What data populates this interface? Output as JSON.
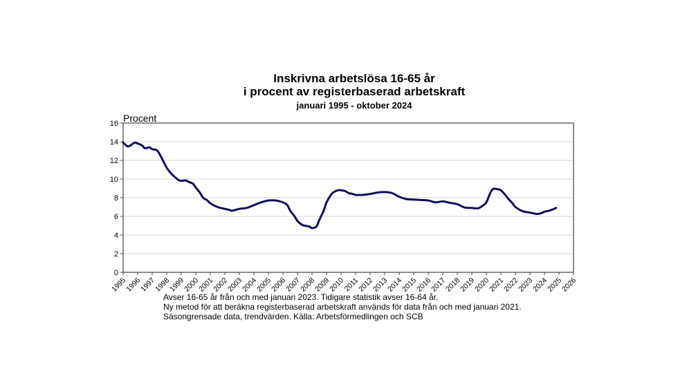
{
  "chart_data": {
    "type": "line",
    "title": "Inskrivna arbetslösa 16-65 år",
    "subtitle": "i procent av registerbaserad arbetskraft",
    "period": "januari 1995 - oktober 2024",
    "xlabel": "",
    "ylabel": "Procent",
    "ylim": [
      0,
      16
    ],
    "yticks": [
      0,
      2,
      4,
      6,
      8,
      10,
      12,
      14,
      16
    ],
    "xticks": [
      "1995",
      "1996",
      "1997",
      "1998",
      "1999",
      "2000",
      "2001",
      "2002",
      "2003",
      "2004",
      "2005",
      "2006",
      "2007",
      "2008",
      "2009",
      "2010",
      "2011",
      "2012",
      "2013",
      "2014",
      "2015",
      "2016",
      "2017",
      "2018",
      "2019",
      "2020",
      "2021",
      "2022",
      "2023",
      "2024",
      "2025",
      "2026"
    ],
    "xlim": [
      1995,
      2026
    ],
    "grid": true,
    "legend": "none",
    "series": [
      {
        "name": "Inskrivna arbetslösa (%)",
        "color": "#0d0d5c",
        "x": [
          1995.0,
          1995.3,
          1995.5,
          1995.8,
          1996.0,
          1996.3,
          1996.5,
          1996.8,
          1997.0,
          1997.3,
          1997.5,
          1997.8,
          1998.0,
          1998.3,
          1998.5,
          1998.8,
          1999.0,
          1999.3,
          1999.5,
          1999.8,
          2000.0,
          2000.3,
          2000.5,
          2000.8,
          2001.0,
          2001.5,
          2002.0,
          2002.3,
          2002.5,
          2003.0,
          2003.5,
          2004.0,
          2004.5,
          2005.0,
          2005.5,
          2006.0,
          2006.3,
          2006.5,
          2006.8,
          2007.0,
          2007.3,
          2007.5,
          2007.8,
          2008.0,
          2008.3,
          2008.5,
          2008.8,
          2009.0,
          2009.3,
          2009.5,
          2009.8,
          2010.0,
          2010.3,
          2010.5,
          2010.8,
          2011.0,
          2011.5,
          2012.0,
          2012.5,
          2013.0,
          2013.5,
          2014.0,
          2014.5,
          2015.0,
          2015.5,
          2016.0,
          2016.5,
          2017.0,
          2017.5,
          2018.0,
          2018.5,
          2019.0,
          2019.3,
          2019.5,
          2019.8,
          2020.0,
          2020.3,
          2020.5,
          2020.8,
          2021.0,
          2021.3,
          2021.5,
          2021.8,
          2022.0,
          2022.5,
          2023.0,
          2023.3,
          2023.5,
          2023.8,
          2024.0,
          2024.3,
          2024.5,
          2024.8
        ],
        "values": [
          13.9,
          13.5,
          13.6,
          13.9,
          13.8,
          13.6,
          13.3,
          13.4,
          13.2,
          13.1,
          12.7,
          11.8,
          11.2,
          10.6,
          10.3,
          9.9,
          9.8,
          9.85,
          9.7,
          9.5,
          9.1,
          8.5,
          8.0,
          7.7,
          7.4,
          7.0,
          6.8,
          6.7,
          6.6,
          6.8,
          6.9,
          7.2,
          7.5,
          7.7,
          7.7,
          7.5,
          7.2,
          6.6,
          6.0,
          5.5,
          5.1,
          5.0,
          4.9,
          4.75,
          4.9,
          5.6,
          6.6,
          7.5,
          8.3,
          8.6,
          8.8,
          8.8,
          8.7,
          8.5,
          8.4,
          8.3,
          8.3,
          8.4,
          8.55,
          8.6,
          8.5,
          8.1,
          7.85,
          7.8,
          7.75,
          7.7,
          7.5,
          7.6,
          7.45,
          7.3,
          6.95,
          6.9,
          6.85,
          6.9,
          7.2,
          7.5,
          8.6,
          8.95,
          8.9,
          8.8,
          8.3,
          7.9,
          7.4,
          7.0,
          6.55,
          6.4,
          6.3,
          6.25,
          6.35,
          6.5,
          6.6,
          6.7,
          6.9
        ]
      }
    ],
    "annotations": [
      "Avser 16-65 år från och med januari 2023. Tidigare statistik avser 16-64 år.",
      "Ny metod för att beräkna registerbaserad arbetskraft används för data från och med januari 2021.",
      "Säsongrensade data, trendvärden. Källa: Arbetsförmedlingen och SCB"
    ]
  },
  "colors": {
    "line": "#0d0d5c",
    "grid": "#d4d4d4",
    "axis": "#404040"
  }
}
